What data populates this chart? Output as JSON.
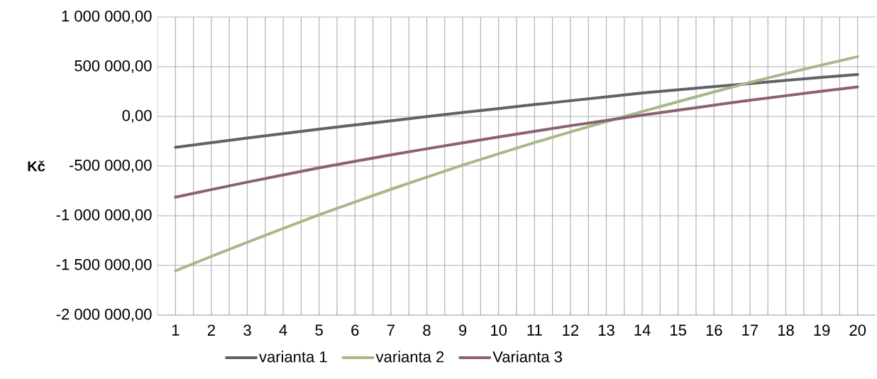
{
  "chart_data": {
    "type": "line",
    "ylabel": "Kč",
    "categories": [
      "1",
      "2",
      "3",
      "4",
      "5",
      "6",
      "7",
      "8",
      "9",
      "10",
      "11",
      "12",
      "13",
      "14",
      "15",
      "16",
      "17",
      "18",
      "19",
      "20"
    ],
    "series": [
      {
        "name": "varianta 1",
        "color": "#616168",
        "values": [
          -311000,
          -264000,
          -218000,
          -173000,
          -129000,
          -86000,
          -44000,
          -2000,
          39000,
          79000,
          119000,
          158000,
          197000,
          235000,
          268000,
          300000,
          331000,
          362000,
          392000,
          421000
        ]
      },
      {
        "name": "varianta 2",
        "color": "#a6b98a",
        "values": [
          -1554000,
          -1409000,
          -1267000,
          -1128000,
          -991000,
          -861000,
          -734000,
          -611000,
          -491000,
          -376000,
          -264000,
          -156000,
          -52000,
          49000,
          148000,
          246000,
          342000,
          431000,
          517000,
          601000
        ]
      },
      {
        "name": "Varianta 3",
        "color": "#8c6170",
        "values": [
          -813000,
          -737000,
          -662000,
          -589000,
          -518000,
          -452000,
          -388000,
          -326000,
          -266000,
          -207000,
          -150000,
          -94000,
          -41000,
          12000,
          63000,
          113000,
          162000,
          208000,
          253000,
          297000
        ]
      }
    ],
    "ylim": [
      -2000000,
      1000000
    ],
    "yticks": [
      {
        "value": -2000000,
        "label": "-2 000 000,00"
      },
      {
        "value": -1500000,
        "label": "-1 500 000,00"
      },
      {
        "value": -1000000,
        "label": "-1 000 000,00"
      },
      {
        "value": -500000,
        "label": "-500 000,00"
      },
      {
        "value": 0,
        "label": "0,00"
      },
      {
        "value": 500000,
        "label": "500 000,00"
      },
      {
        "value": 1000000,
        "label": "1 000 000,00"
      }
    ],
    "grid": true,
    "legend": "bottom",
    "marker": "none",
    "line_style": "solid"
  }
}
